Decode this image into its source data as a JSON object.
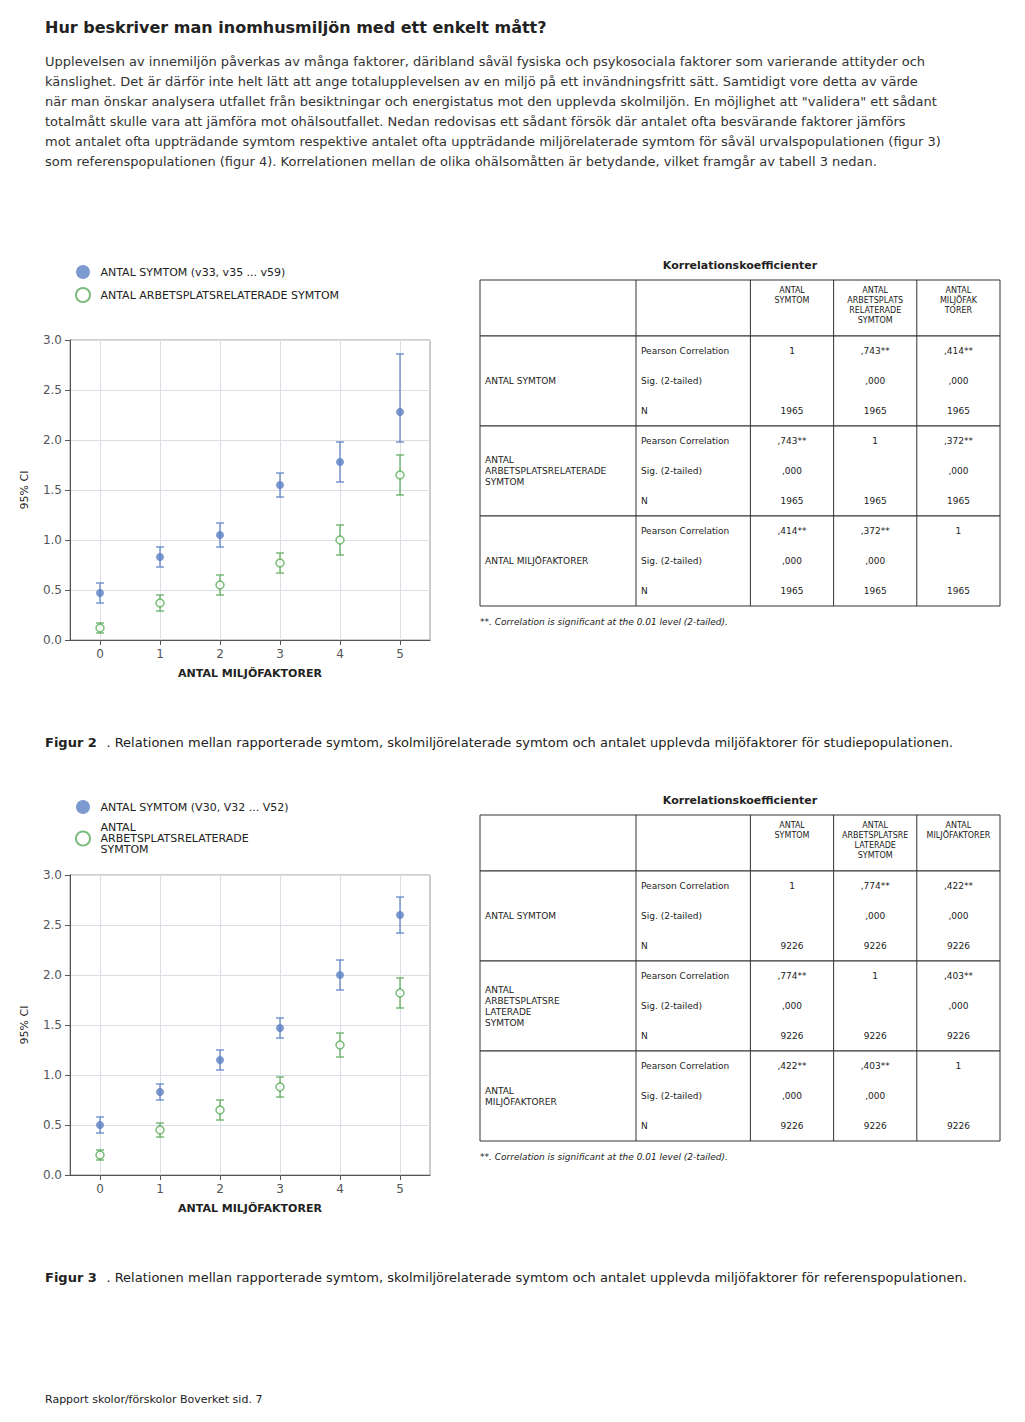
{
  "title": "Hur beskriver man inomhusmiljön med ett enkelt mått?",
  "subtitle": "Upplevelsen av innemiljön påverkas av många faktorer, däribland såväl fysiska och psykosociala faktorer som varierande attityder och känslighet. Det är därför inte helt lätt att ange totalupplevelsen av en miljö på ett invändningsfritt sätt. Samtidigt vore detta av värde när man önskar analysera utfallet från besiktningar och energistatus mot den upplevda skolmiljön. En möjlighet att \"validera\" ett sådant totalmått skulle vara att jämföra mot ohälsoutfallet. Nedan redovisas ett sådant försök där antalet ofta besvärande faktorer jämförs mot antalet ofta uppträdande symtom respektive antalet ofta uppträdande miljörelaterade symtom för såväl urvalspopulationen (figur 3) som referenspopulationen (figur 4). Korrelationen mellan de olika ohälsomåtten är betydande, vilket framgår av tabell 3 nedan.",
  "footer": "Rapport skolor/förskolor Boverket sid. 7",
  "chart_data": [
    {
      "type": "scatter",
      "caption_label": "Figur 2",
      "caption": ". Relationen mellan rapporterade symtom, skolmiljörelaterade symtom och antalet upplevda miljöfaktorer för studiepopulationen.",
      "xlabel": "ANTAL MILJÖFAKTORER",
      "ylabel": "95% CI",
      "xlim": [
        -0.5,
        5.5
      ],
      "xticks": [
        0,
        1,
        2,
        3,
        4,
        5
      ],
      "ylim": [
        0,
        3
      ],
      "yticks": [
        {
          "value": 0,
          "label": "0.0"
        },
        0.5,
        {
          "value": 1,
          "label": "1.0"
        },
        1.5,
        {
          "value": 2,
          "label": "2.0"
        },
        2.5,
        {
          "value": 3,
          "label": "3.0"
        }
      ],
      "grid": true,
      "legend": "top",
      "series": [
        {
          "name": "ANTAL SYMTOM (v33, v35 ... v59)",
          "color": "#5b7fc4",
          "marker": "filled",
          "x": [
            0,
            1,
            2,
            3,
            4,
            5
          ],
          "values": [
            0.47,
            0.83,
            1.05,
            1.55,
            1.78,
            2.28
          ],
          "yerr_low": [
            0.1,
            0.1,
            0.12,
            0.12,
            0.2,
            0.3
          ],
          "yerr_high": [
            0.1,
            0.1,
            0.12,
            0.12,
            0.2,
            0.58
          ]
        },
        {
          "name": "ANTAL ARBETSPLATSRELATERADE SYMTOM",
          "color": "#5aaa5a",
          "marker": "hollow",
          "x": [
            0,
            1,
            2,
            3,
            4,
            5
          ],
          "values": [
            0.12,
            0.37,
            0.55,
            0.77,
            1.0,
            1.65
          ],
          "yerr_low": [
            0.05,
            0.08,
            0.1,
            0.1,
            0.15,
            0.2
          ],
          "yerr_high": [
            0.05,
            0.08,
            0.1,
            0.1,
            0.15,
            0.2
          ]
        }
      ],
      "table": {
        "title": "Korrelationskoefficienter",
        "columns": [
          "ANTAL\nSYMTOM",
          "ANTAL\nARBETSPLATS\nRELATERADE\nSYMTOM",
          "ANTAL\nMILJÖFAK\nTORER"
        ],
        "groups": [
          {
            "label": "ANTAL SYMTOM",
            "rows": [
              [
                "Pearson Correlation",
                "1",
                ",743**",
                ",414**"
              ],
              [
                "Sig. (2-tailed)",
                null,
                ",000",
                ",000"
              ],
              [
                "N",
                "1965",
                "1965",
                "1965"
              ]
            ]
          },
          {
            "label": "ANTAL\nARBETSPLATSRELATERADE\nSYMTOM",
            "rows": [
              [
                "Pearson Correlation",
                ",743**",
                "1",
                ",372**"
              ],
              [
                "Sig. (2-tailed)",
                ",000",
                null,
                ",000"
              ],
              [
                "N",
                "1965",
                "1965",
                "1965"
              ]
            ]
          },
          {
            "label": "ANTAL MILJÖFAKTORER",
            "rows": [
              [
                "Pearson Correlation",
                ",414**",
                ",372**",
                "1"
              ],
              [
                "Sig. (2-tailed)",
                ",000",
                ",000",
                null
              ],
              [
                "N",
                "1965",
                "1965",
                "1965"
              ]
            ]
          }
        ],
        "note": "**. Correlation is significant at the 0.01 level (2-tailed)."
      }
    },
    {
      "type": "scatter",
      "caption_label": "Figur 3",
      "caption": ". Relationen mellan rapporterade symtom, skolmiljörelaterade symtom och antalet upplevda miljöfaktorer för referenspopulationen.",
      "xlabel": "ANTAL MILJÖFAKTORER",
      "ylabel": "95% CI",
      "xlim": [
        -0.5,
        5.5
      ],
      "xticks": [
        0,
        1,
        2,
        3,
        4,
        5
      ],
      "ylim": [
        0,
        3
      ],
      "yticks": [
        {
          "value": 0,
          "label": "0.0"
        },
        0.5,
        {
          "value": 1,
          "label": "1.0"
        },
        1.5,
        {
          "value": 2,
          "label": "2.0"
        },
        2.5,
        {
          "value": 3,
          "label": "3.0"
        }
      ],
      "grid": true,
      "legend": "top",
      "series": [
        {
          "name": "ANTAL SYMTOM (V30, V32 ... V52)",
          "color": "#5b7fc4",
          "marker": "filled",
          "x": [
            0,
            1,
            2,
            3,
            4,
            5
          ],
          "values": [
            0.5,
            0.83,
            1.15,
            1.47,
            2.0,
            2.6
          ],
          "yerr_low": [
            0.08,
            0.08,
            0.1,
            0.1,
            0.15,
            0.18
          ],
          "yerr_high": [
            0.08,
            0.08,
            0.1,
            0.1,
            0.15,
            0.18
          ]
        },
        {
          "name": "ANTAL\nARBETSPLATSRELATERADE\nSYMTOM",
          "color": "#5aaa5a",
          "marker": "hollow",
          "x": [
            0,
            1,
            2,
            3,
            4,
            5
          ],
          "values": [
            0.2,
            0.45,
            0.65,
            0.88,
            1.3,
            1.82
          ],
          "yerr_low": [
            0.05,
            0.07,
            0.1,
            0.1,
            0.12,
            0.15
          ],
          "yerr_high": [
            0.05,
            0.07,
            0.1,
            0.1,
            0.12,
            0.15
          ]
        }
      ],
      "table": {
        "title": "Korrelationskoefficienter",
        "columns": [
          "ANTAL\nSYMTOM",
          "ANTAL\nARBETSPLATSRE\nLATERADE\nSYMTOM",
          "ANTAL\nMILJÖFAKTORER"
        ],
        "groups": [
          {
            "label": "ANTAL SYMTOM",
            "rows": [
              [
                "Pearson Correlation",
                "1",
                ",774**",
                ",422**"
              ],
              [
                "Sig. (2-tailed)",
                null,
                ",000",
                ",000"
              ],
              [
                "N",
                "9226",
                "9226",
                "9226"
              ]
            ]
          },
          {
            "label": "ANTAL\nARBETSPLATSRE\nLATERADE\nSYMTOM",
            "rows": [
              [
                "Pearson Correlation",
                ",774**",
                "1",
                ",403**"
              ],
              [
                "Sig. (2-tailed)",
                ",000",
                null,
                ",000"
              ],
              [
                "N",
                "9226",
                "9226",
                "9226"
              ]
            ]
          },
          {
            "label": "ANTAL\nMILJÖFAKTORER",
            "rows": [
              [
                "Pearson Correlation",
                ",422**",
                ",403**",
                "1"
              ],
              [
                "Sig. (2-tailed)",
                ",000",
                ",000",
                null
              ],
              [
                "N",
                "9226",
                "9226",
                "9226"
              ]
            ]
          }
        ],
        "note": "**. Correlation is significant at the 0.01 level (2-tailed)."
      }
    }
  ]
}
